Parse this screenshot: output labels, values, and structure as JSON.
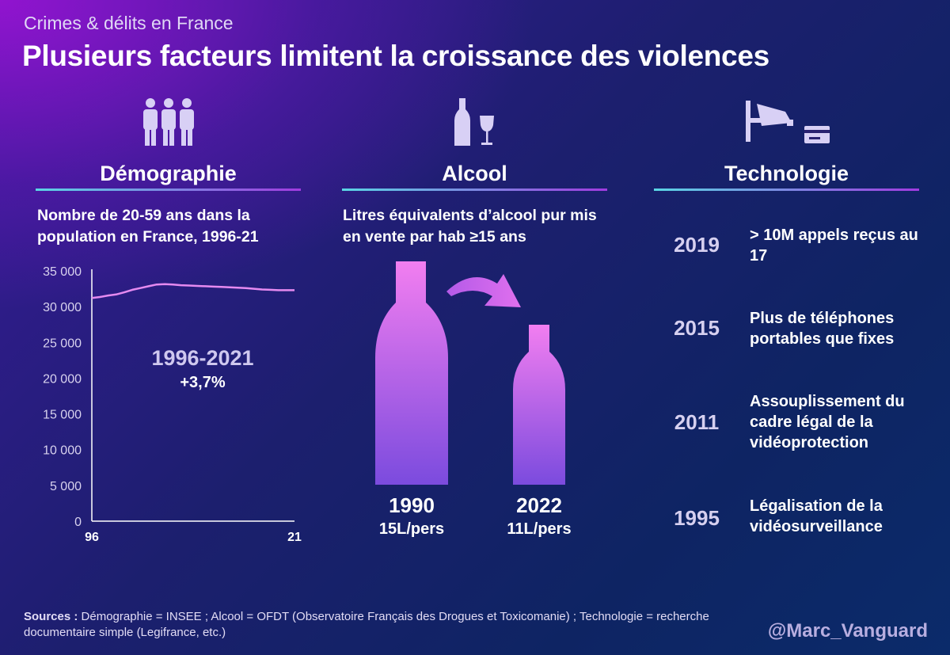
{
  "header": {
    "subtitle": "Crimes & délits en France",
    "title": "Plusieurs facteurs limitent la croissance des violences"
  },
  "sections": {
    "demo": {
      "title": "Démographie",
      "icon": "people-icon"
    },
    "alcool": {
      "title": "Alcool",
      "icon": "bottle-glass-icon"
    },
    "tech": {
      "title": "Technologie",
      "icon": "camera-card-icon"
    }
  },
  "chart_data": {
    "type": "line",
    "title": "Nombre de 20-59 ans dans la population en France, 1996-21",
    "x": [
      1996,
      1997,
      1998,
      1999,
      2000,
      2001,
      2002,
      2003,
      2004,
      2005,
      2006,
      2007,
      2008,
      2009,
      2010,
      2011,
      2012,
      2013,
      2014,
      2015,
      2016,
      2017,
      2018,
      2019,
      2020,
      2021
    ],
    "values": [
      31200,
      31350,
      31550,
      31700,
      32000,
      32350,
      32600,
      32850,
      33100,
      33150,
      33100,
      33000,
      32950,
      32900,
      32850,
      32800,
      32750,
      32700,
      32650,
      32600,
      32500,
      32400,
      32350,
      32300,
      32300,
      32300
    ],
    "ylim": [
      0,
      35000
    ],
    "yticks": [
      "35 000",
      "30 000",
      "25 000",
      "20 000",
      "15 000",
      "10 000",
      "5 000",
      "0"
    ],
    "ytick_values": [
      35000,
      30000,
      25000,
      20000,
      15000,
      10000,
      5000,
      0
    ],
    "xticks": [
      "96",
      "21"
    ],
    "annotation": {
      "period": "1996-2021",
      "change": "+3,7%"
    },
    "line_color": "#e58af0"
  },
  "alcool": {
    "title": "Litres équivalents d’alcool pur mis en vente par hab ≥15 ans",
    "bottles": [
      {
        "year": "1990",
        "volume": "15L/pers",
        "value": 15
      },
      {
        "year": "2022",
        "volume": "11L/pers",
        "value": 11
      }
    ]
  },
  "timeline": [
    {
      "year": "2019",
      "text": "> 10M appels reçus au 17"
    },
    {
      "year": "2015",
      "text": "Plus de téléphones portables que fixes"
    },
    {
      "year": "2011",
      "text": "Assouplissement du cadre légal de la vidéoprotection"
    },
    {
      "year": "1995",
      "text": "Légalisation de la vidéosurveillance"
    }
  ],
  "footer": {
    "sources_label": "Sources :",
    "sources_text": "Démographie = INSEE ; Alcool = OFDT (Observatoire Français des Drogues et Toxicomanie) ; Technologie = recherche documentaire simple (Legifrance, etc.)",
    "handle": "@Marc_Vanguard"
  }
}
